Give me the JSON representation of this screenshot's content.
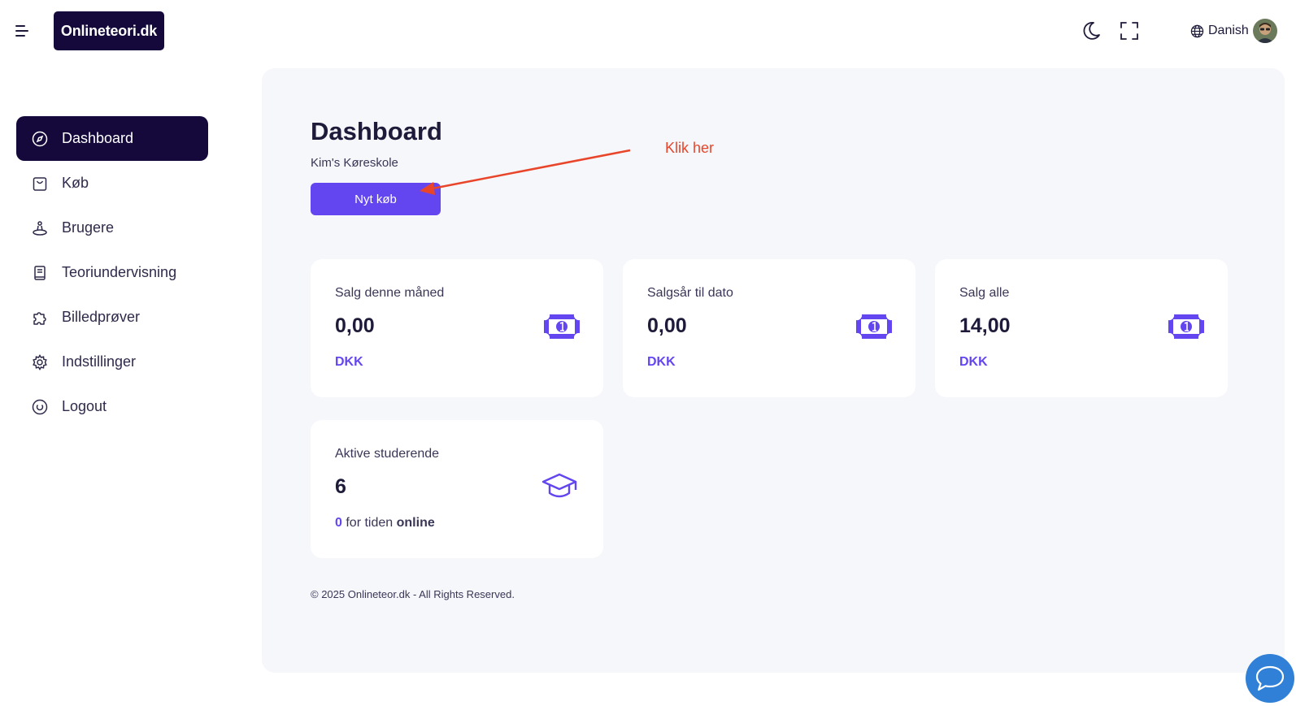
{
  "header": {
    "logo_text": "Onlineteori.dk",
    "language": "Danish",
    "icons": [
      "menu-icon",
      "moon-icon",
      "fullscreen-icon",
      "globe-icon"
    ]
  },
  "sidebar": {
    "items": [
      {
        "label": "Dashboard",
        "icon": "compass-icon",
        "active": true
      },
      {
        "label": "Køb",
        "icon": "shopping-bag-icon",
        "active": false
      },
      {
        "label": "Brugere",
        "icon": "users-icon",
        "active": false
      },
      {
        "label": "Teoriundervisning",
        "icon": "book-icon",
        "active": false
      },
      {
        "label": "Billedprøver",
        "icon": "puzzle-icon",
        "active": false
      },
      {
        "label": "Indstillinger",
        "icon": "gear-icon",
        "active": false
      },
      {
        "label": "Logout",
        "icon": "power-icon",
        "active": false
      }
    ]
  },
  "main": {
    "title": "Dashboard",
    "subtitle": "Kim's Køreskole",
    "new_purchase_label": "Nyt køb",
    "annotation": "Klik her",
    "cards": [
      {
        "label": "Salg denne måned",
        "value": "0,00",
        "foot": "DKK",
        "icon": "banknote-icon"
      },
      {
        "label": "Salgsår til dato",
        "value": "0,00",
        "foot": "DKK",
        "icon": "banknote-icon"
      },
      {
        "label": "Salg alle",
        "value": "14,00",
        "foot": "DKK",
        "icon": "banknote-icon"
      }
    ],
    "students_card": {
      "label": "Aktive studerende",
      "value": "6",
      "online_count": "0",
      "online_mid": "for tiden",
      "online_word": "online",
      "icon": "graduation-cap-icon"
    },
    "footer": "© 2025 Onlineteor.dk - All Rights Reserved."
  },
  "colors": {
    "accent": "#6446f0",
    "sidebar_active": "#14093a",
    "annotation": "#e8452a",
    "chat": "#2f80d6"
  }
}
